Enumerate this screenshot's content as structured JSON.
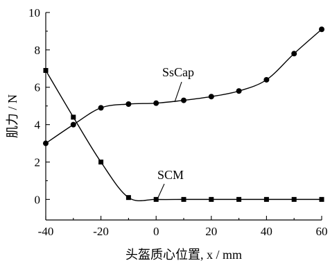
{
  "chart_data": {
    "type": "line",
    "xlabel": "头盔质心位置, x / mm",
    "ylabel": "肌力 / N",
    "xlim": [
      -40,
      60
    ],
    "ylim": [
      0,
      10
    ],
    "xticks": [
      -40,
      -20,
      0,
      20,
      40,
      60
    ],
    "yticks": [
      0,
      2,
      4,
      6,
      8,
      10
    ],
    "x": [
      -40,
      -30,
      -20,
      -10,
      0,
      10,
      20,
      30,
      40,
      50,
      60
    ],
    "series": [
      {
        "name": "SsCap",
        "marker": "circle",
        "values": [
          3.0,
          4.0,
          4.9,
          5.1,
          5.15,
          5.3,
          5.5,
          5.8,
          6.4,
          7.8,
          9.1
        ]
      },
      {
        "name": "SCM",
        "marker": "square",
        "values": [
          6.9,
          4.4,
          2.0,
          0.1,
          0.0,
          0.0,
          0.0,
          0.0,
          0.0,
          0.0,
          0.0
        ]
      }
    ],
    "grid": false,
    "legend": "inline labels"
  }
}
